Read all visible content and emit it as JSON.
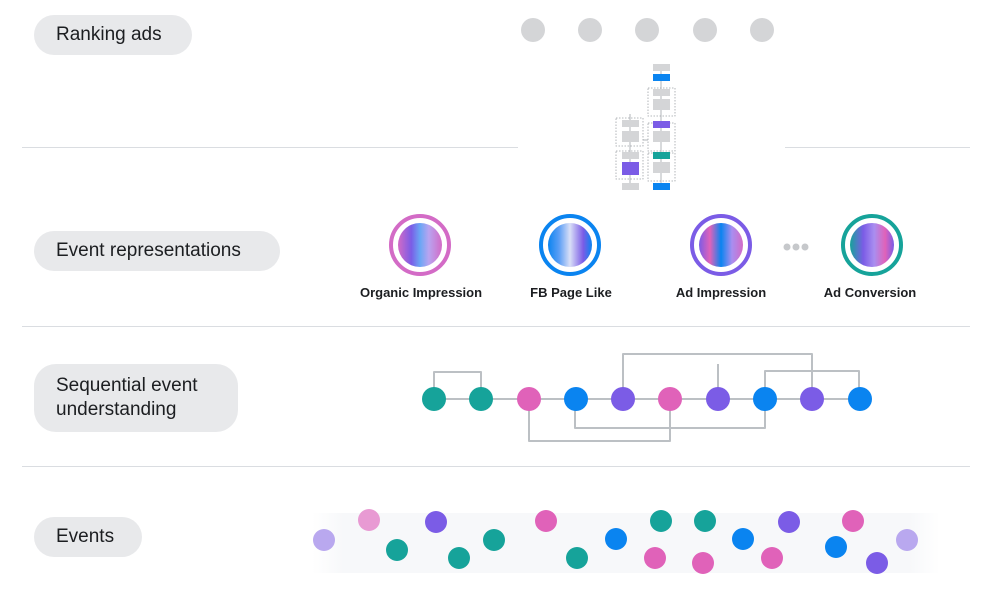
{
  "layers": {
    "ranking": "Ranking ads",
    "representations": "Event representations",
    "sequential_line1": "Sequential event",
    "sequential_line2": "understanding",
    "events": "Events"
  },
  "event_types": [
    {
      "label": "Organic Impression",
      "ring_color": "#d36bc6"
    },
    {
      "label": "FB Page Like",
      "ring_color": "#0a84f0"
    },
    {
      "label": "Ad Impression",
      "ring_color": "#7b5ce6"
    },
    {
      "label": "Ad Conversion",
      "ring_color": "#16a39a"
    }
  ],
  "colors": {
    "pink": "#e062b9",
    "blue": "#0a84f0",
    "purple": "#7b5ce6",
    "teal": "#16a39a",
    "gray": "#d4d5d7",
    "connector": "#bcc0c4"
  },
  "sequence_nodes": [
    "teal",
    "teal",
    "pink",
    "blue",
    "purple",
    "pink",
    "purple",
    "blue",
    "purple",
    "blue"
  ],
  "event_dots": [
    "purple-light",
    "pink-light",
    "teal",
    "purple",
    "teal",
    "teal",
    "pink",
    "teal",
    "blue",
    "teal",
    "pink",
    "pink",
    "teal",
    "blue",
    "pink",
    "purple",
    "blue",
    "pink",
    "purple",
    "purple-light"
  ]
}
